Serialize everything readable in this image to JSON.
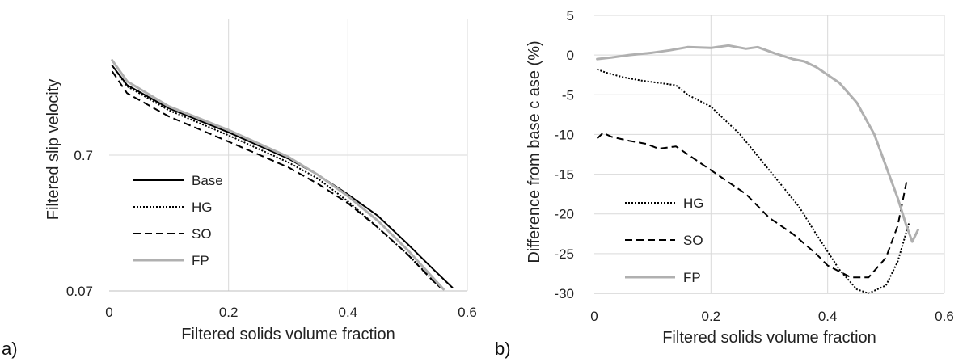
{
  "chart_data": [
    {
      "panel_label": "a)",
      "type": "line",
      "xlabel": "Filtered solids volume fraction",
      "ylabel": "Filtered slip velocity",
      "xlim": [
        0,
        0.6
      ],
      "ylim": [
        0.07,
        7
      ],
      "y_scale": "log",
      "x_ticks": [
        "0",
        "0.2",
        "0.4",
        "0.6"
      ],
      "y_ticks": [
        "0.07",
        "0.7"
      ],
      "grid": "vertical gridlines at x ticks, horizontal at y ticks",
      "legend_position": "left-bottom",
      "series": [
        {
          "name": "Base",
          "style": "solid",
          "color": "#000000",
          "x": [
            0.005,
            0.03,
            0.1,
            0.2,
            0.3,
            0.35,
            0.4,
            0.45,
            0.5,
            0.54,
            0.575
          ],
          "y": [
            3.2,
            2.3,
            1.55,
            1.03,
            0.66,
            0.5,
            0.36,
            0.25,
            0.155,
            0.104,
            0.074
          ]
        },
        {
          "name": "HG",
          "style": "dotted",
          "color": "#000000",
          "x": [
            0.005,
            0.03,
            0.1,
            0.2,
            0.3,
            0.35,
            0.4,
            0.45,
            0.5,
            0.54,
            0.555
          ],
          "y": [
            3.2,
            2.25,
            1.5,
            0.98,
            0.62,
            0.47,
            0.32,
            0.205,
            0.13,
            0.086,
            0.074
          ]
        },
        {
          "name": "SO",
          "style": "dashed",
          "color": "#000000",
          "x": [
            0.005,
            0.03,
            0.1,
            0.2,
            0.3,
            0.35,
            0.4,
            0.45,
            0.5,
            0.54,
            0.555
          ],
          "y": [
            2.9,
            2.0,
            1.35,
            0.88,
            0.57,
            0.43,
            0.31,
            0.205,
            0.13,
            0.085,
            0.074
          ]
        },
        {
          "name": "FP",
          "style": "solid",
          "color": "#b0b0b0",
          "x": [
            0.005,
            0.03,
            0.1,
            0.2,
            0.3,
            0.35,
            0.4,
            0.45,
            0.5,
            0.54,
            0.56
          ],
          "y": [
            3.5,
            2.45,
            1.6,
            1.07,
            0.68,
            0.5,
            0.35,
            0.23,
            0.14,
            0.09,
            0.072
          ]
        }
      ]
    },
    {
      "panel_label": "b)",
      "type": "line",
      "xlabel": "Filtered solids volume fraction",
      "ylabel": "Difference from base c ase (%)",
      "xlim": [
        0,
        0.6
      ],
      "ylim": [
        -30,
        5
      ],
      "x_ticks": [
        "0",
        "0.2",
        "0.4",
        "0.6"
      ],
      "y_ticks": [
        "-30",
        "-25",
        "-20",
        "-15",
        "-10",
        "-5",
        "0",
        "5"
      ],
      "grid": "vertical gridlines at x ticks, horizontal at y ticks",
      "legend_position": "left-bottom",
      "series": [
        {
          "name": "HG",
          "style": "dotted",
          "color": "#000000",
          "x": [
            0.005,
            0.02,
            0.05,
            0.08,
            0.11,
            0.14,
            0.16,
            0.2,
            0.25,
            0.3,
            0.35,
            0.38,
            0.42,
            0.45,
            0.47,
            0.5,
            0.52,
            0.54
          ],
          "y": [
            -1.8,
            -2.2,
            -2.8,
            -3.2,
            -3.5,
            -3.8,
            -5.0,
            -6.5,
            -10.0,
            -14.5,
            -19.0,
            -22.5,
            -27.0,
            -29.5,
            -30.0,
            -29.0,
            -26.0,
            -21.0
          ]
        },
        {
          "name": "SO",
          "style": "dashed",
          "color": "#000000",
          "x": [
            0.005,
            0.015,
            0.03,
            0.06,
            0.09,
            0.11,
            0.14,
            0.18,
            0.22,
            0.26,
            0.3,
            0.34,
            0.38,
            0.4,
            0.44,
            0.47,
            0.5,
            0.52,
            0.535
          ],
          "y": [
            -10.5,
            -9.8,
            -10.3,
            -10.8,
            -11.2,
            -11.8,
            -11.5,
            -13.5,
            -15.5,
            -17.5,
            -20.5,
            -22.5,
            -25.0,
            -26.5,
            -28.0,
            -28.0,
            -25.5,
            -21.5,
            -16.0
          ]
        },
        {
          "name": "FP",
          "style": "solid",
          "color": "#b0b0b0",
          "x": [
            0.005,
            0.03,
            0.06,
            0.1,
            0.13,
            0.16,
            0.2,
            0.23,
            0.26,
            0.28,
            0.31,
            0.34,
            0.36,
            0.38,
            0.4,
            0.42,
            0.45,
            0.48,
            0.5,
            0.52,
            0.535,
            0.545,
            0.555
          ],
          "y": [
            -0.5,
            -0.3,
            0.0,
            0.3,
            0.6,
            1.0,
            0.9,
            1.2,
            0.8,
            1.0,
            0.2,
            -0.5,
            -0.8,
            -1.5,
            -2.5,
            -3.5,
            -6.0,
            -10.0,
            -14.0,
            -18.0,
            -21.5,
            -23.5,
            -22.0
          ]
        }
      ]
    }
  ]
}
